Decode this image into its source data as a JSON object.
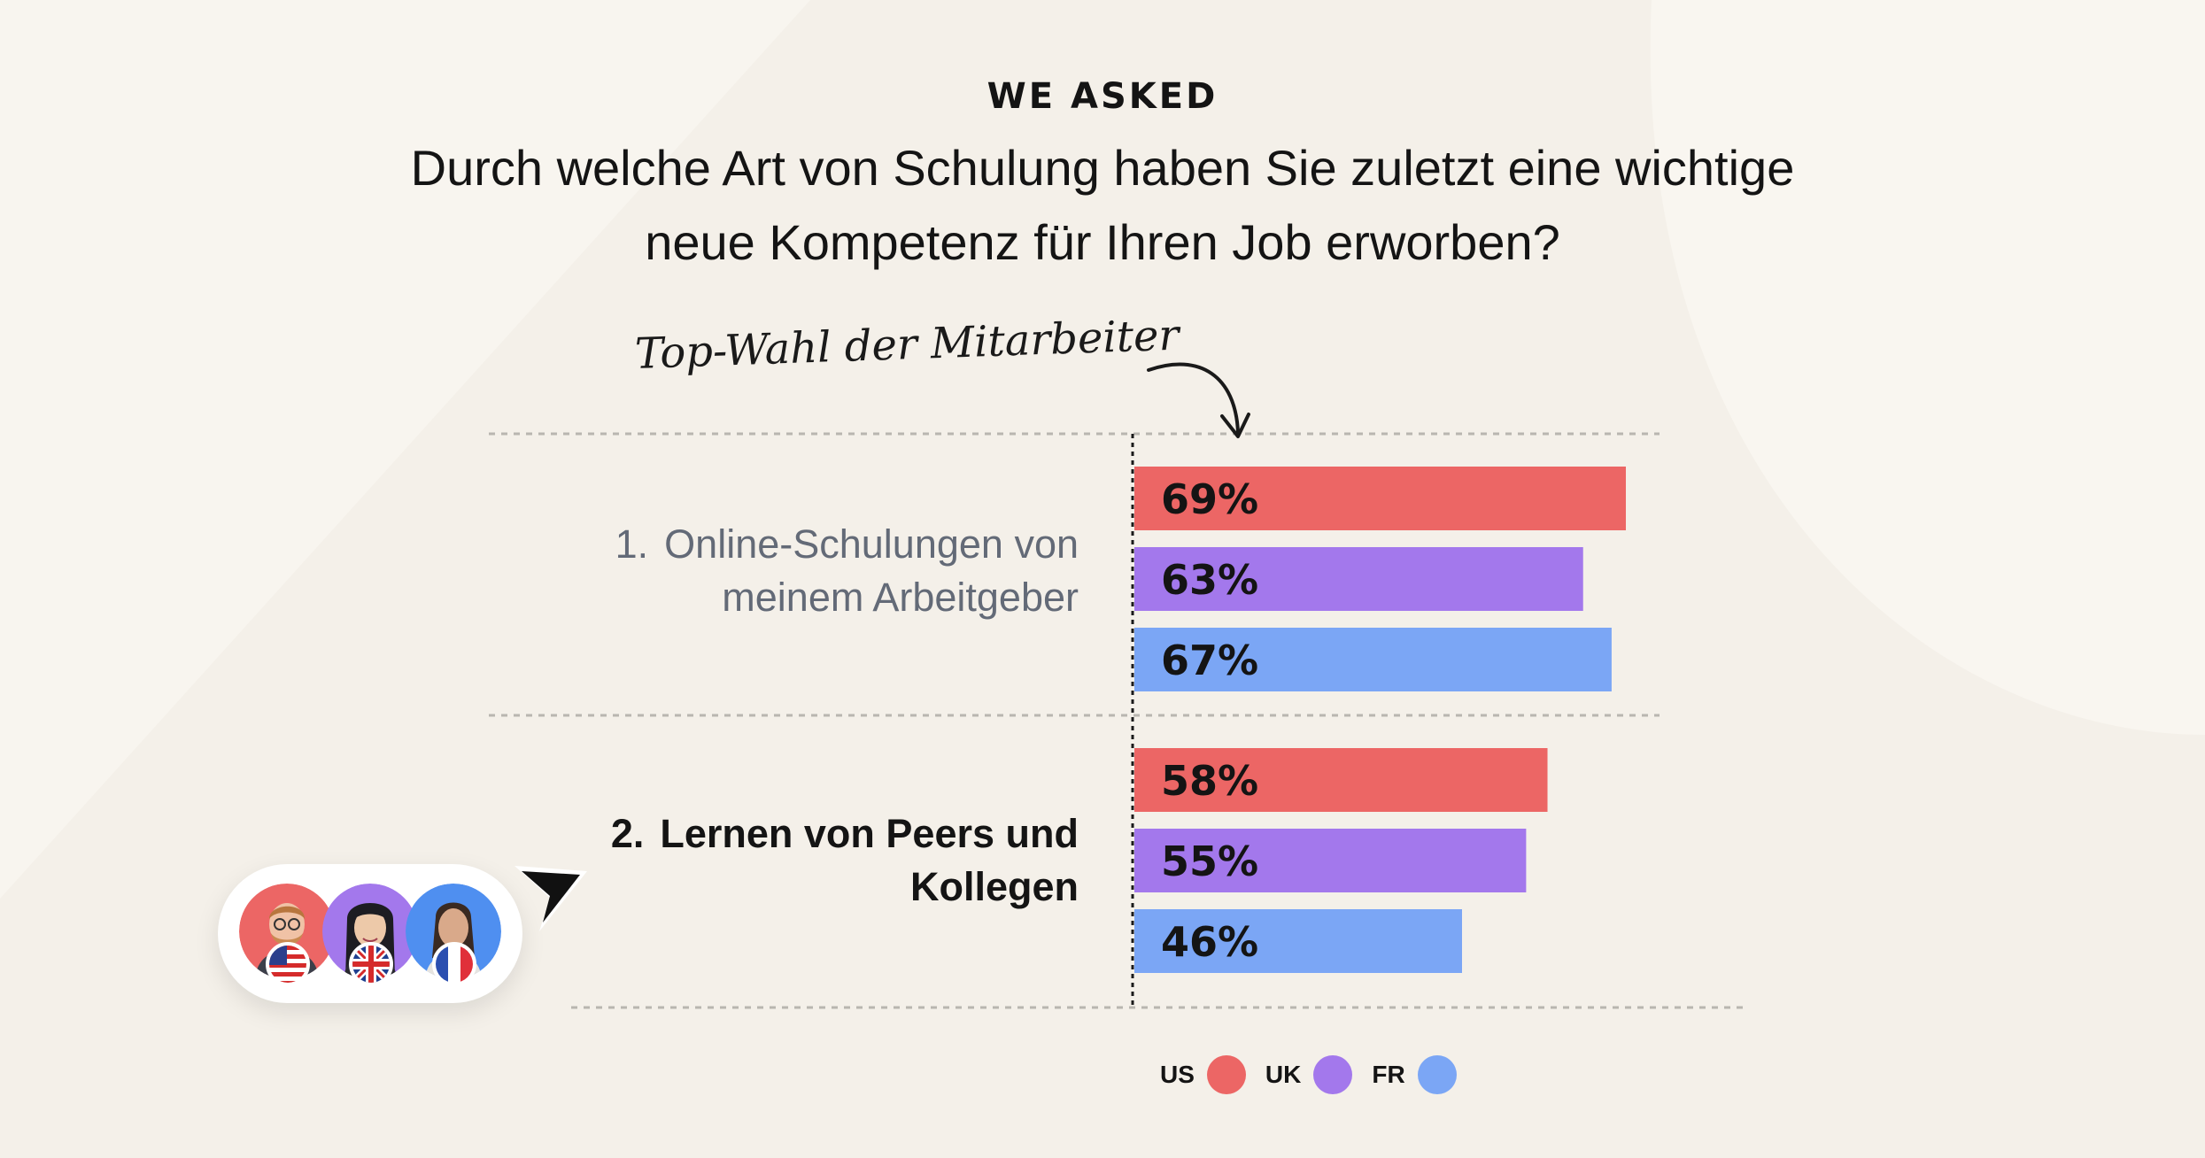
{
  "header": {
    "kicker": "WE ASKED",
    "question_line1": "Durch welche Art von Schulung haben Sie zuletzt eine wichtige",
    "question_line2": "neue Kompetenz für Ihren Job erworben?"
  },
  "annotation": "Top-Wahl der Mitarbeiter",
  "categories": [
    {
      "number": "1.",
      "line1": "Online-Schulungen von",
      "line2": "meinem Arbeitgeber"
    },
    {
      "number": "2.",
      "line1": "Lernen von Peers und",
      "line2": "Kollegen"
    }
  ],
  "legend": [
    {
      "label": "US",
      "color": "#ec6665"
    },
    {
      "label": "UK",
      "color": "#a378ec"
    },
    {
      "label": "FR",
      "color": "#7ba6f5"
    }
  ],
  "avatars": [
    {
      "icon": "person-avatar-icon",
      "flag": "us-flag-icon",
      "color": "#ec6665"
    },
    {
      "icon": "person-avatar-icon",
      "flag": "uk-flag-icon",
      "color": "#a378ec"
    },
    {
      "icon": "person-avatar-icon",
      "flag": "fr-flag-icon",
      "color": "#4f8ff0"
    }
  ],
  "chart_data": {
    "type": "bar",
    "orientation": "horizontal",
    "categories": [
      "1. Online-Schulungen von meinem Arbeitgeber",
      "2. Lernen von Peers und Kollegen"
    ],
    "series": [
      {
        "name": "US",
        "color": "#ec6665",
        "values": [
          69,
          58
        ]
      },
      {
        "name": "UK",
        "color": "#a378ec",
        "values": [
          63,
          55
        ]
      },
      {
        "name": "FR",
        "color": "#7ba6f5",
        "values": [
          67,
          46
        ]
      }
    ],
    "value_suffix": "%",
    "xlim": [
      0,
      100
    ],
    "grid": false,
    "legend_position": "bottom"
  }
}
